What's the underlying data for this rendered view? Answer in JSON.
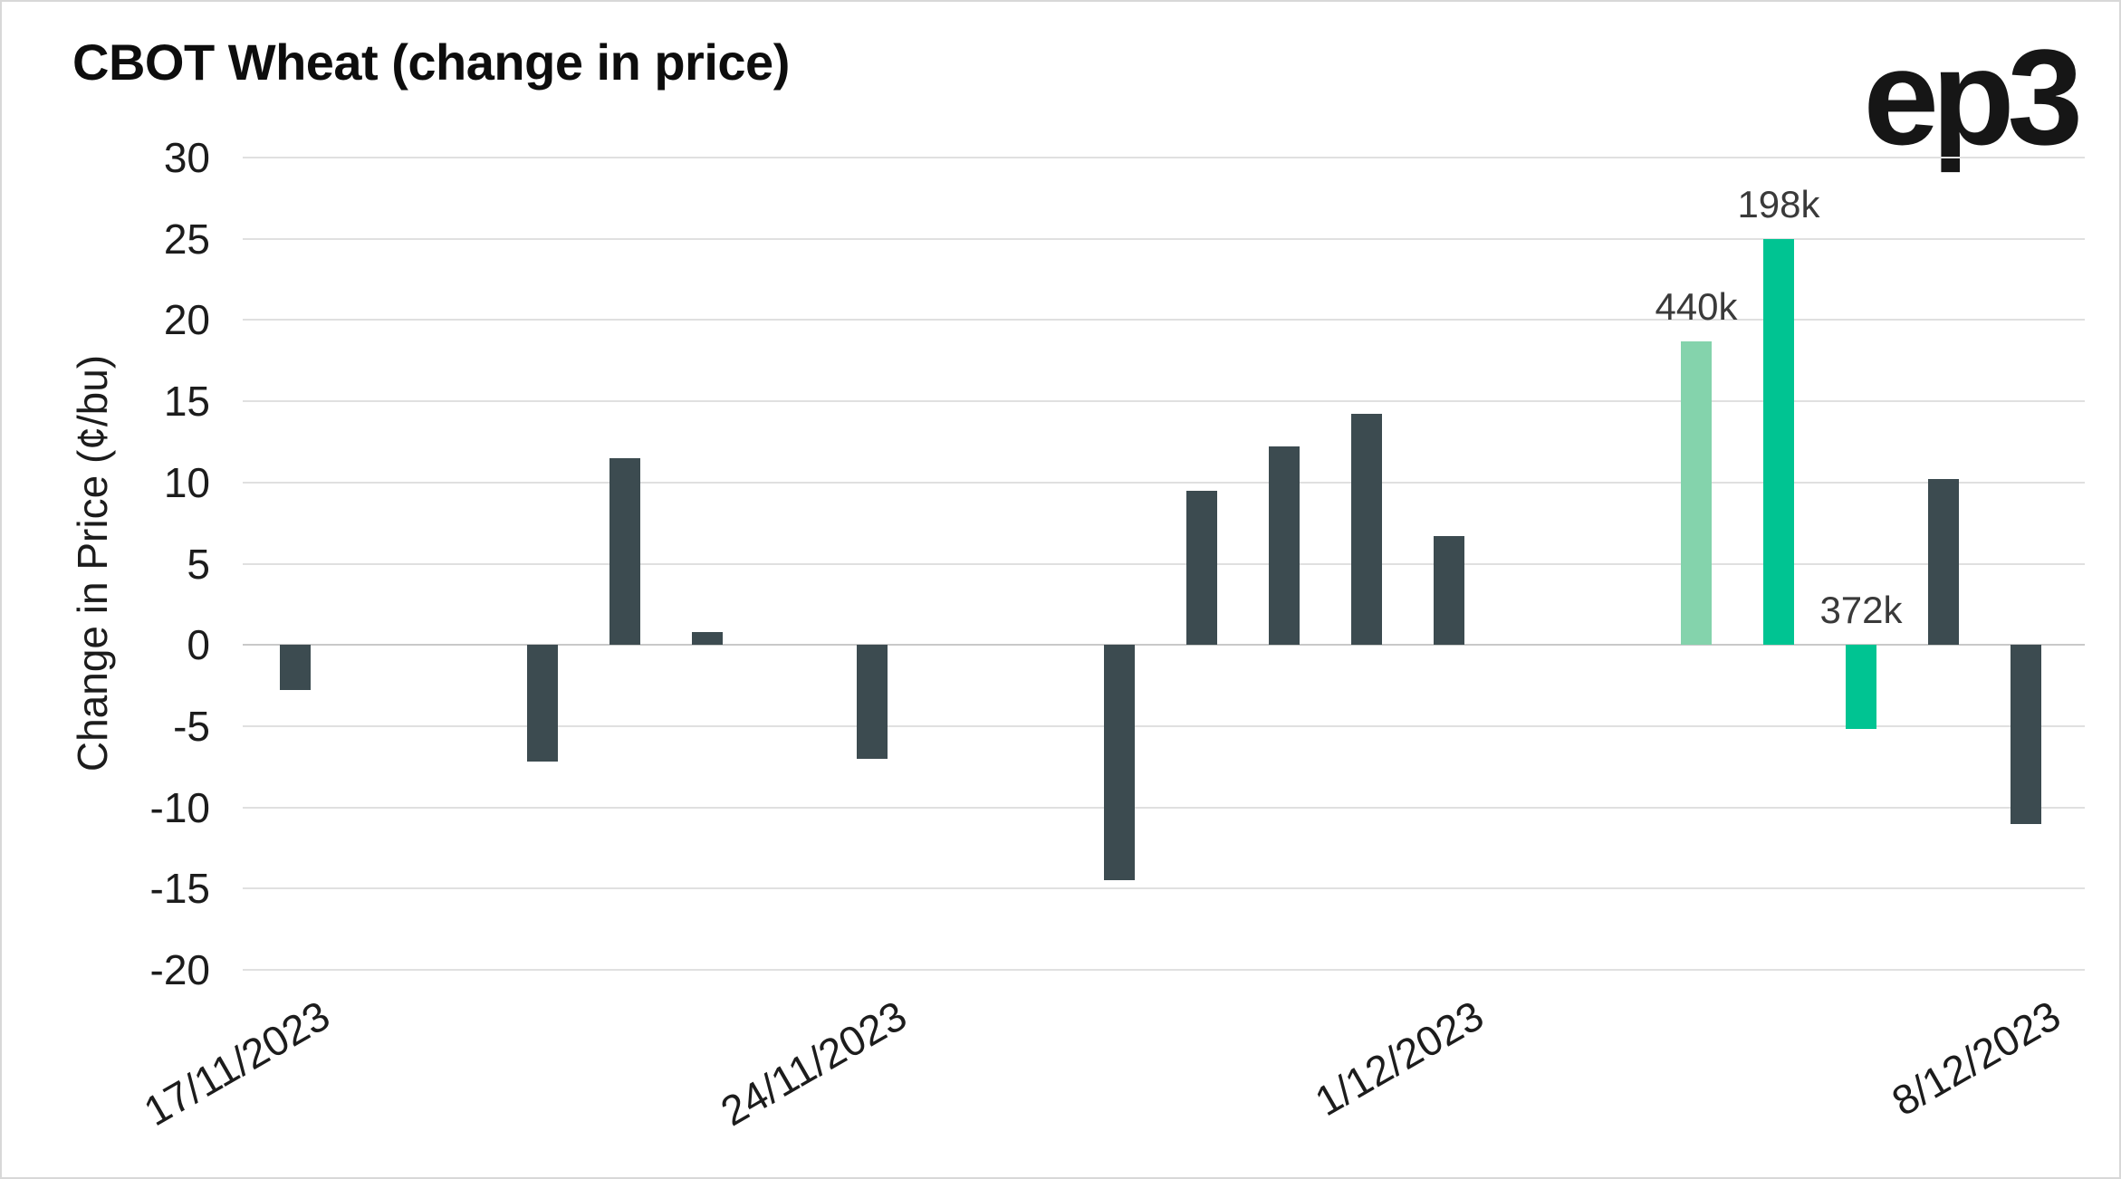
{
  "page": {
    "title": "CBOT Wheat (change in price)",
    "logo": "ep3"
  },
  "chart_data": {
    "type": "bar",
    "title": "CBOT Wheat (change in price)",
    "ylabel": "Change in Price (¢/bu)",
    "ylim": [
      -20,
      30
    ],
    "yticks": [
      30,
      25,
      20,
      15,
      10,
      5,
      0,
      -5,
      -10,
      -15,
      -20
    ],
    "grid": "horizontal",
    "legend": "none",
    "x_axis": {
      "type": "date",
      "domain_days": [
        0,
        21
      ],
      "ticks": [
        {
          "label": "17/11/2023",
          "day": 0
        },
        {
          "label": "24/11/2023",
          "day": 7
        },
        {
          "label": "1/12/2023",
          "day": 14
        },
        {
          "label": "8/12/2023",
          "day": 21
        }
      ]
    },
    "bars": [
      {
        "day": 0,
        "value": -2.8,
        "color": "dark"
      },
      {
        "day": 3,
        "value": -7.2,
        "color": "dark"
      },
      {
        "day": 4,
        "value": 11.5,
        "color": "dark"
      },
      {
        "day": 5,
        "value": 0.8,
        "color": "dark"
      },
      {
        "day": 7,
        "value": -7.0,
        "color": "dark"
      },
      {
        "day": 10,
        "value": -14.5,
        "color": "dark"
      },
      {
        "day": 11,
        "value": 9.5,
        "color": "dark"
      },
      {
        "day": 12,
        "value": 12.2,
        "color": "dark"
      },
      {
        "day": 13,
        "value": 14.2,
        "color": "dark"
      },
      {
        "day": 14,
        "value": 6.7,
        "color": "dark"
      },
      {
        "day": 17,
        "value": 18.7,
        "color": "light_green",
        "annotation": "440k"
      },
      {
        "day": 18,
        "value": 25.0,
        "color": "green",
        "annotation": "198k"
      },
      {
        "day": 19,
        "value": -5.2,
        "color": "green",
        "annotation": "372k"
      },
      {
        "day": 20,
        "value": 10.2,
        "color": "dark"
      },
      {
        "day": 21,
        "value": -11.0,
        "color": "dark"
      }
    ],
    "colors": {
      "dark": "#3c4b50",
      "light_green": "#84d3ac",
      "green": "#00c492",
      "grid": "#e0e0e0",
      "zero_line": "#c9c9c9",
      "tick_text": "#1c1c1c",
      "annotation_text": "#3a3a3a"
    }
  }
}
